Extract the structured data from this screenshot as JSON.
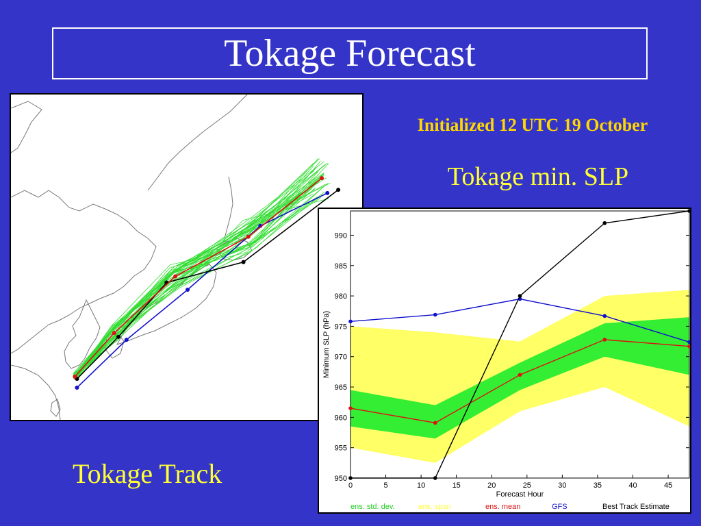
{
  "header": {
    "title": "Tokage Forecast"
  },
  "subtitle": "Initialized 12 UTC 19 October",
  "slp_panel_title": "Tokage min. SLP",
  "track_panel_title": "Tokage Track",
  "colors": {
    "background": "#3434c8",
    "ens_std": "#33ee33",
    "ens_span": "#ffff66",
    "ens_mean": "#dd1111",
    "gfs": "#1111cc",
    "best_track": "#000000",
    "ensemble_members": "#33dd33"
  },
  "track_map": {
    "ensemble_mean": [
      [
        0.182,
        0.867
      ],
      [
        0.294,
        0.733
      ],
      [
        0.468,
        0.559
      ],
      [
        0.676,
        0.437
      ],
      [
        0.885,
        0.257
      ]
    ],
    "gfs": [
      [
        0.188,
        0.901
      ],
      [
        0.329,
        0.754
      ],
      [
        0.503,
        0.6
      ],
      [
        0.71,
        0.404
      ],
      [
        0.901,
        0.303
      ]
    ],
    "best_track": [
      [
        0.188,
        0.874
      ],
      [
        0.306,
        0.745
      ],
      [
        0.443,
        0.578
      ],
      [
        0.662,
        0.515
      ],
      [
        0.932,
        0.293
      ]
    ]
  },
  "chart_data": {
    "type": "line",
    "title": "",
    "xlabel": "Forecast Hour",
    "ylabel": "Minimum SLP (hPa)",
    "xlim": [
      0,
      48
    ],
    "ylim": [
      950,
      994
    ],
    "x_ticks": [
      0,
      5,
      10,
      15,
      20,
      25,
      30,
      35,
      40,
      45
    ],
    "y_ticks": [
      950,
      955,
      960,
      965,
      970,
      975,
      980,
      985,
      990
    ],
    "span_band": {
      "x": [
        0,
        12,
        24,
        36,
        48
      ],
      "lower": [
        955,
        952.5,
        961,
        965,
        958.5
      ],
      "upper": [
        975,
        974,
        972.5,
        980,
        981
      ]
    },
    "std_band": {
      "x": [
        0,
        12,
        24,
        36,
        48
      ],
      "lower": [
        958.5,
        956.5,
        964.5,
        970,
        967
      ],
      "upper": [
        964.5,
        962,
        969,
        975.5,
        976.5
      ]
    },
    "series": [
      {
        "name": "ens. mean",
        "x": [
          0,
          12,
          24,
          36,
          48
        ],
        "values": [
          961.5,
          959.1,
          967.0,
          972.8,
          971.7
        ]
      },
      {
        "name": "GFS",
        "x": [
          0,
          12,
          24,
          36,
          48
        ],
        "values": [
          975.8,
          976.9,
          979.5,
          976.7,
          972.4
        ]
      },
      {
        "name": "Best Track Estimate",
        "x": [
          0,
          12,
          24,
          36,
          48
        ],
        "values": [
          950,
          950,
          980,
          992,
          994
        ]
      }
    ],
    "legend": {
      "placement": "bottom",
      "items": [
        {
          "label": "ens. std. dev.",
          "color": "#22cc22"
        },
        {
          "label": "ens. span",
          "color": "#ffff33"
        },
        {
          "label": "ens. mean",
          "color": "#dd1111"
        },
        {
          "label": "GFS",
          "color": "#1111cc"
        },
        {
          "label": "Best Track Estimate",
          "color": "#000000"
        }
      ]
    }
  }
}
